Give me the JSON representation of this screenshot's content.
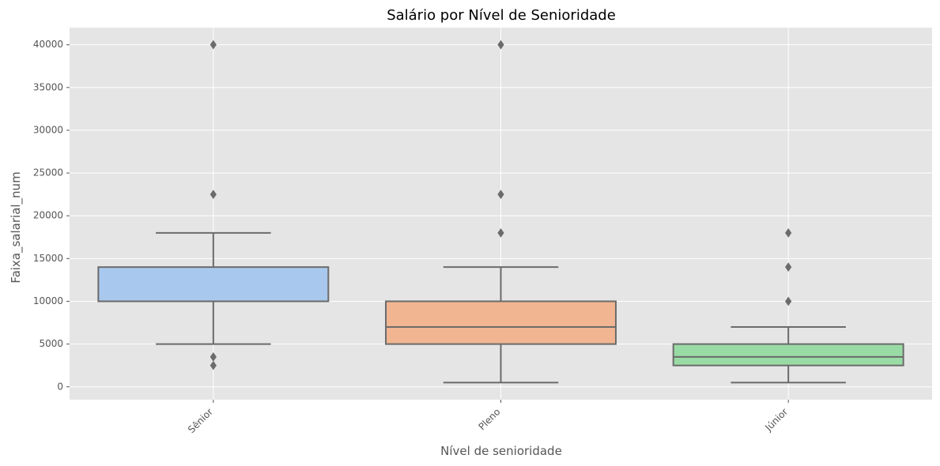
{
  "chart_data": {
    "type": "box",
    "title": "Salário por Nível de Senioridade",
    "xlabel": "Nível de senioridade",
    "ylabel": "Faixa_salarial_num",
    "ylim": [
      -1500,
      42000
    ],
    "yticks": [
      0,
      5000,
      10000,
      15000,
      20000,
      25000,
      30000,
      35000,
      40000
    ],
    "grid": true,
    "categories": [
      "Sênior",
      "Pleno",
      "Júnior"
    ],
    "boxes": [
      {
        "category": "Sênior",
        "whisker_low": 5000,
        "q1": 10000,
        "median": 10000,
        "q3": 14000,
        "whisker_high": 18000,
        "outliers": [
          2500,
          3500,
          22500,
          40000
        ],
        "color": "#a9c8ee"
      },
      {
        "category": "Pleno",
        "whisker_low": 500,
        "q1": 5000,
        "median": 7000,
        "q3": 10000,
        "whisker_high": 14000,
        "outliers": [
          18000,
          22500,
          40000
        ],
        "color": "#f1b591"
      },
      {
        "category": "Júnior",
        "whisker_low": 500,
        "q1": 2500,
        "median": 3500,
        "q3": 5000,
        "whisker_high": 7000,
        "outliers": [
          10000,
          14000,
          18000
        ],
        "color": "#99dba4"
      }
    ]
  }
}
